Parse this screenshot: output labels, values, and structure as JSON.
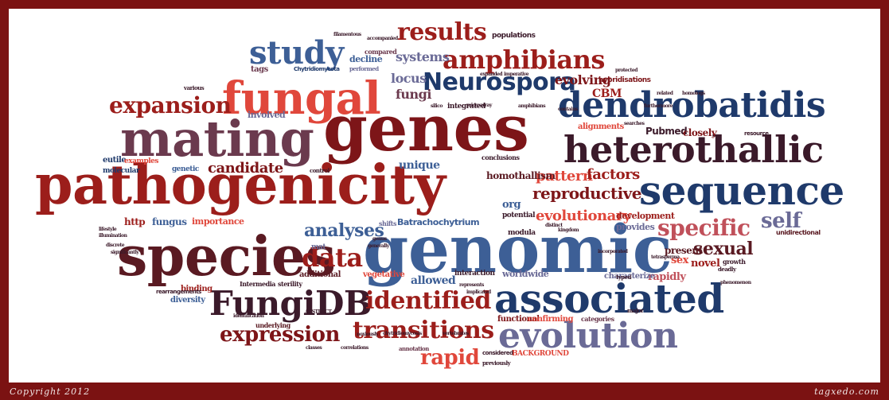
{
  "colors": {
    "dark_red": "#7d1518",
    "red": "#9c1e1b",
    "light_red": "#e0473b",
    "navy": "#1f3a6b",
    "blue": "#3d5f96",
    "slate": "#6a6a96",
    "plum": "#6b3a4e",
    "maroon": "#5a1a22",
    "frame": "#7b1212"
  },
  "footer": {
    "copyright": "Copyright 2012",
    "brand": "tagxedo.com"
  },
  "words": [
    "pathogenicity",
    "genomic",
    "genes",
    "mating",
    "species",
    "dendrobatidis",
    "heterothallic",
    "sequence",
    "fungal",
    "associated",
    "FungiDB",
    "evolution",
    "amphibians",
    "study",
    "results",
    "Neurospora",
    "expansion",
    "data",
    "identified",
    "transitions",
    "expression",
    "specific",
    "sexual",
    "self",
    "rapid",
    "candidate",
    "analyses",
    "reproductive",
    "evolutionary",
    "pattern",
    "factors",
    "systems",
    "locus",
    "fungi",
    "evolving",
    "CBM",
    "hybridisations",
    "alignments",
    "Pubmed",
    "closely",
    "involved",
    "unique",
    "homothallism",
    "Batrachochytrium",
    "development",
    "provides",
    "present",
    "sex",
    "novel",
    "rapidly",
    "allowed",
    "worldwide",
    "additional",
    "vegetative",
    "interaction",
    "functional",
    "confirming",
    "http",
    "fungus",
    "importance",
    "binding",
    "diversity",
    "Intermedia",
    "sterility",
    "underlying",
    "mat",
    "eutile",
    "molecular",
    "genetic",
    "examples",
    "decline",
    "populations",
    "compared",
    "performed",
    "tags",
    "org",
    "potential",
    "modula",
    "conclusions",
    "shifts",
    "control",
    "various",
    "Chytridiomycota",
    "Pubmed",
    "cause",
    "orthology",
    "unidirectional",
    "characterize",
    "growth",
    "deadly",
    "tetrasperma",
    "categories",
    "major",
    "typed",
    "BACKGROUND",
    "previously",
    "considered",
    "annotation",
    "vertebrates",
    "classes",
    "correlations",
    "chytridiomycosis",
    "noxiously",
    "ABSTRACT",
    "identification",
    "rearrangements",
    "lifestyle",
    "illumination",
    "discrete",
    "significantly",
    "resource",
    "kingdom",
    "distinct",
    "represents",
    "implicated",
    "filamentous",
    "accompanied",
    "expanded",
    "imperative",
    "protected",
    "related",
    "homologs",
    "searches",
    "furthermore",
    "genus",
    "generally",
    "integrated",
    "microarray",
    "silico",
    "amphibians",
    "contains",
    "unprecedented",
    "incorporated",
    "phenomenon"
  ]
}
